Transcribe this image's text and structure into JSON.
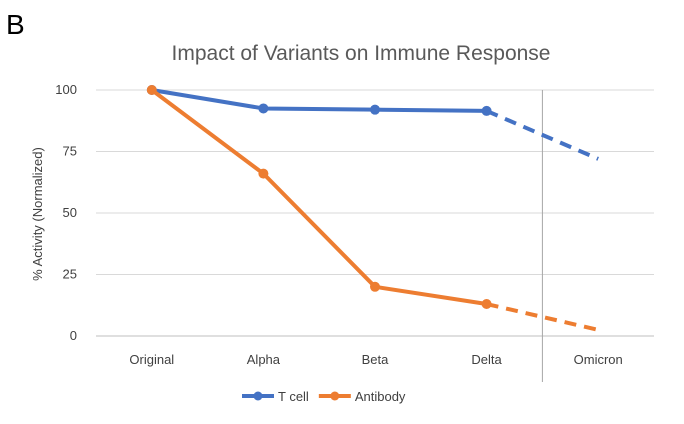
{
  "panel_label": "B",
  "chart_data": {
    "type": "line",
    "title": "Impact of Variants on Immune Response",
    "xlabel": "",
    "ylabel": "% Activity (Normalized)",
    "categories": [
      "Original",
      "Alpha",
      "Beta",
      "Delta",
      "Omicron"
    ],
    "yticks": [
      0,
      25,
      50,
      75,
      100
    ],
    "ylim": [
      0,
      100
    ],
    "grid": true,
    "legend_position": "bottom",
    "series": [
      {
        "name": "T cell",
        "color": "#4472C4",
        "values": [
          100,
          92.5,
          92,
          91.5,
          72
        ],
        "projected_from_index": 3
      },
      {
        "name": "Antibody",
        "color": "#ED7D31",
        "values": [
          100,
          66,
          20,
          13,
          2.5
        ],
        "projected_from_index": 3
      }
    ],
    "separator_between": [
      "Delta",
      "Omicron"
    ]
  }
}
